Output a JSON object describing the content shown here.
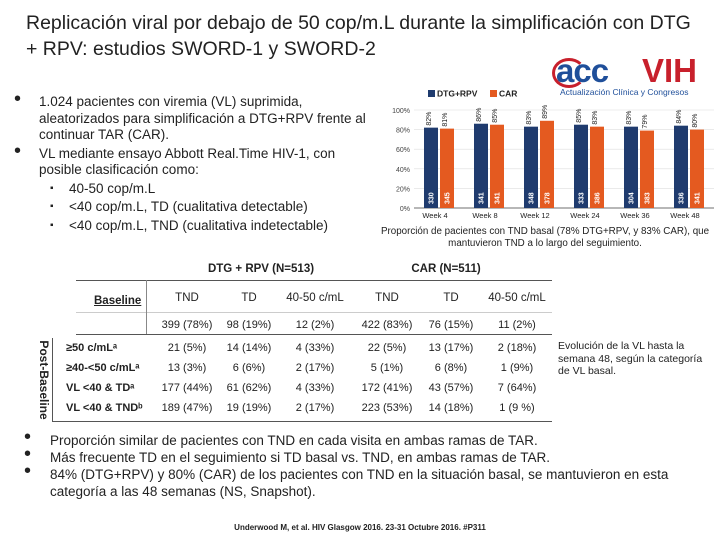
{
  "title": "Replicación viral por debajo de 50 cop/m.L durante la simplificación con DTG + RPV: estudios SWORD-1 y SWORD-2",
  "logo": {
    "acc": "acc",
    "vih": "VIH",
    "subtitle": "Actualización Clínica y Congresos"
  },
  "bullets_top": [
    "1.024 pacientes con viremia (VL) suprimida, aleatorizados para simplificación a DTG+RPV frente al continuar TAR (CAR).",
    "VL mediante ensayo Abbott Real.Time HIV-1, con posible clasificación como:"
  ],
  "sub_bullets": [
    "40-50 cop/m.L",
    "<40 cop/m.L, TD (cualitativa detectable)",
    "<40 cop/m.L, TND (cualitativa indetectable)"
  ],
  "colors": {
    "dtg": "#1f3b6e",
    "car": "#e45a20",
    "title": "#222222"
  },
  "chart_data": {
    "type": "bar",
    "title": "",
    "categories": [
      "Week 4",
      "Week 8",
      "Week 12",
      "Week 24",
      "Week 36",
      "Week 48"
    ],
    "legend": [
      "DTG+RPV",
      "CAR"
    ],
    "series": [
      {
        "name": "DTG+RPV",
        "values": [
          82,
          86,
          83,
          85,
          83,
          84
        ],
        "labels": [
          "82%",
          "86%",
          "83%",
          "85%",
          "83%",
          "84%"
        ],
        "n": [
          "330",
          "341",
          "348",
          "333",
          "304",
          "336"
        ]
      },
      {
        "name": "CAR",
        "values": [
          81,
          85,
          89,
          83,
          79,
          80
        ],
        "labels": [
          "81%",
          "85%",
          "89%",
          "83%",
          "79%",
          "80%"
        ],
        "n": [
          "345",
          "341",
          "378",
          "386",
          "383",
          "341"
        ]
      }
    ],
    "yticks": [
      "100%",
      "80%",
      "60%",
      "40%",
      "20%",
      "0%"
    ],
    "ylim": [
      0,
      100
    ],
    "xlabel": "",
    "ylabel": ""
  },
  "chart_caption": "Proporción de pacientes con TND basal (78% DTG+RPV, y 83% CAR), que mantuvieron TND a lo largo del seguimiento.",
  "table": {
    "group_dtg": "DTG + RPV (N=513)",
    "group_car": "CAR (N=511)",
    "baseline_label": "Baseline",
    "post_baseline_label": "Post-Baseline",
    "col_heads": [
      "TND",
      "TD",
      "40-50 c/mL",
      "TND",
      "TD",
      "40-50 c/mL"
    ],
    "baseline_values": [
      "399 (78%)",
      "98 (19%)",
      "12 (2%)",
      "422 (83%)",
      "76 (15%)",
      "11 (2%)"
    ],
    "rows": [
      {
        "label": "≥50 c/mLᵃ",
        "values": [
          "21 (5%)",
          "14 (14%)",
          "4 (33%)",
          "22 (5%)",
          "13 (17%)",
          "2 (18%)"
        ]
      },
      {
        "label": "≥40-<50 c/mLᵃ",
        "values": [
          "13 (3%)",
          "6 (6%)",
          "2 (17%)",
          "5 (1%)",
          "6 (8%)",
          "1 (9%)"
        ]
      },
      {
        "label": "VL <40 & TDᵃ",
        "values": [
          "177 (44%)",
          "61 (62%)",
          "4 (33%)",
          "172 (41%)",
          "43 (57%)",
          "7 (64%)"
        ]
      },
      {
        "label": "VL <40 & TNDᵇ",
        "values": [
          "189 (47%)",
          "19 (19%)",
          "2 (17%)",
          "223 (53%)",
          "14 (18%)",
          "1 (9 %)"
        ]
      }
    ]
  },
  "table_note": "Evolución de la VL hasta la semana 48, según la categoría de VL basal.",
  "bullets_bottom": [
    "Proporción similar de pacientes con TND en cada visita en ambas ramas de TAR.",
    "Más frecuente TD en el seguimiento si TD basal vs. TND, en ambas ramas de TAR.",
    "84% (DTG+RPV) y 80% (CAR) de los pacientes con TND en la situación basal, se mantuvieron en esta categoría a las 48 semanas (NS, Snapshot)."
  ],
  "citation": "Underwood M, et al. HIV Glasgow 2016. 23-31 Octubre 2016. #P311"
}
